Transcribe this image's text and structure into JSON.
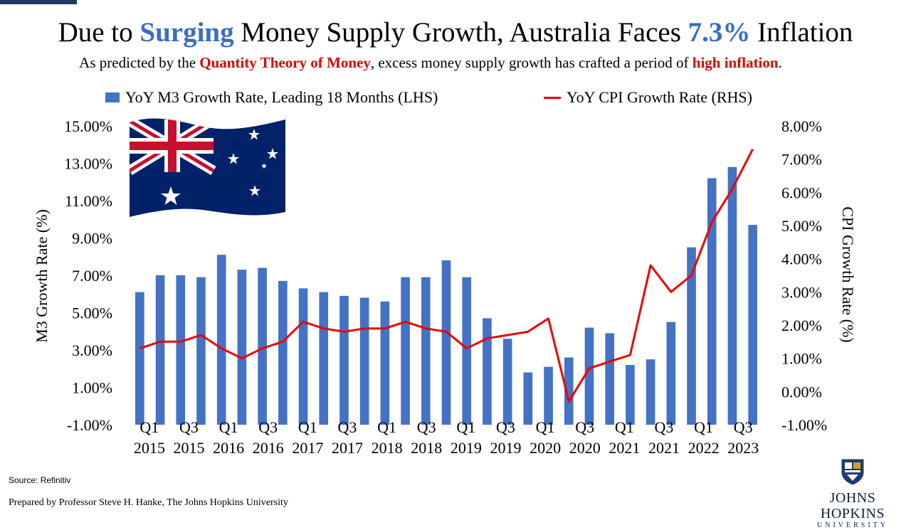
{
  "header": {
    "title_pre": "Due to ",
    "title_hl1": "Surging",
    "title_mid": " Money Supply Growth, Australia Faces ",
    "title_hl2": "7.3%",
    "title_post": " Inflation",
    "sub_pre": "As predicted by the ",
    "sub_hl1": "Quantity Theory of Money",
    "sub_mid": ", excess money supply growth has crafted a period of ",
    "sub_hl2": "high inflation",
    "sub_post": "."
  },
  "colors": {
    "bar": "#4472c4",
    "line": "#ee0000",
    "title_accent": "#3c6dc1",
    "subtitle_accent": "#e00000",
    "flag_blue": "#012169",
    "flag_red": "#c8102e"
  },
  "chart_data": {
    "type": "bar+line",
    "legend": [
      {
        "label": "YoY M3 Growth Rate, Leading 18 Months (LHS)",
        "kind": "bar"
      },
      {
        "label": "YoY CPI Growth Rate (RHS)",
        "kind": "line"
      }
    ],
    "y_left_label": "M3 Growth Rate (%)",
    "y_right_label": "CPI Growth Rate (%)",
    "y_left_range": [
      -1,
      15
    ],
    "y_right_range": [
      -1,
      8
    ],
    "y_left_ticks": [
      "15.00%",
      "13.00%",
      "11.00%",
      "9.00%",
      "7.00%",
      "5.00%",
      "3.00%",
      "1.00%",
      "-1.00%"
    ],
    "y_right_ticks": [
      "8.00%",
      "7.00%",
      "6.00%",
      "5.00%",
      "4.00%",
      "3.00%",
      "2.00%",
      "1.00%",
      "0.00%",
      "-1.00%"
    ],
    "x_labels": [
      [
        "Q1",
        "2015"
      ],
      [
        "Q3",
        "2015"
      ],
      [
        "Q1",
        "2016"
      ],
      [
        "Q3",
        "2016"
      ],
      [
        "Q1",
        "2017"
      ],
      [
        "Q3",
        "2017"
      ],
      [
        "Q1",
        "2018"
      ],
      [
        "Q3",
        "2018"
      ],
      [
        "Q1",
        "2019"
      ],
      [
        "Q3",
        "2019"
      ],
      [
        "Q1",
        "2020"
      ],
      [
        "Q3",
        "2020"
      ],
      [
        "Q1",
        "2021"
      ],
      [
        "Q3",
        "2021"
      ],
      [
        "Q1",
        "2022"
      ],
      [
        "Q3",
        "2023"
      ]
    ],
    "m3_series": {
      "name": "YoY M3 Growth Rate, Leading 18 Months (LHS)",
      "values": [
        6.1,
        7.0,
        7.0,
        6.9,
        8.1,
        7.3,
        7.4,
        6.7,
        6.3,
        6.1,
        5.9,
        5.8,
        5.6,
        6.9,
        6.9,
        7.8,
        6.9,
        4.7,
        3.6,
        1.8,
        2.1,
        2.6,
        4.2,
        3.9,
        2.2,
        2.5,
        4.5,
        8.5,
        12.2,
        12.8,
        9.7
      ]
    },
    "cpi_series": {
      "name": "YoY CPI Growth Rate (RHS)",
      "values": [
        1.3,
        1.5,
        1.5,
        1.7,
        1.3,
        1.0,
        1.3,
        1.5,
        2.1,
        1.9,
        1.8,
        1.9,
        1.9,
        2.1,
        1.9,
        1.8,
        1.3,
        1.6,
        1.7,
        1.8,
        2.2,
        -0.3,
        0.7,
        0.9,
        1.1,
        3.8,
        3.0,
        3.5,
        5.1,
        6.1,
        7.3
      ]
    }
  },
  "footer": {
    "source": "Source:  Refinitiv",
    "prepared": "Prepared by Professor Steve H. Hanke, The Johns Hopkins University",
    "logo_name": "JOHNS HOPKINS",
    "logo_sub": "UNIVERSITY"
  }
}
